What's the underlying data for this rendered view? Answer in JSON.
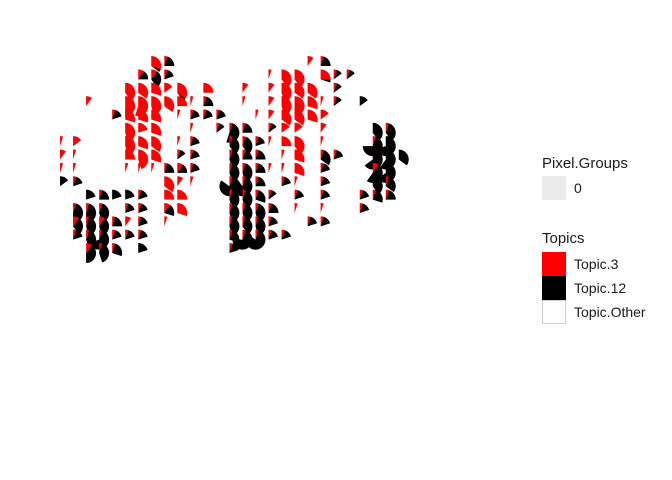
{
  "chart_data": {
    "type": "scatter-pie",
    "title": "",
    "xlabel": "",
    "ylabel": "",
    "grid": false,
    "axes_visible": false,
    "x_range": [
      1,
      35
    ],
    "y_range": [
      1,
      26
    ],
    "colors": {
      "Topic.3": "#ff0000",
      "Topic.12": "#000000",
      "Topic.Other": "#ffffff"
    },
    "legend": {
      "placement": "right",
      "pixel_groups": {
        "title": "Pixel.Groups",
        "entries": [
          "0"
        ],
        "fill": "#ebebeb"
      },
      "topics": {
        "title": "Topics",
        "entries": [
          "Topic.3",
          "Topic.12",
          "Topic.Other"
        ]
      }
    },
    "fields": [
      "x",
      "y",
      "topic3_share",
      "topic12_share"
    ],
    "points": [
      [
        9,
        1,
        0.3,
        0.05
      ],
      [
        10,
        1,
        0.05,
        0.2
      ],
      [
        8,
        2,
        0.1,
        0.15
      ],
      [
        9,
        2,
        0.1,
        0.3
      ],
      [
        10,
        2,
        0.05,
        0.15
      ],
      [
        7,
        3,
        0.4,
        0.0
      ],
      [
        8,
        3,
        0.35,
        0.0
      ],
      [
        9,
        3,
        0.3,
        0.0
      ],
      [
        10,
        3,
        0.15,
        0.0
      ],
      [
        11,
        3,
        0.35,
        0.05
      ],
      [
        13,
        3,
        0.25,
        0.0
      ],
      [
        4,
        4,
        0.1,
        0.0
      ],
      [
        7,
        4,
        0.5,
        0.0
      ],
      [
        8,
        4,
        0.55,
        0.0
      ],
      [
        9,
        4,
        0.45,
        0.0
      ],
      [
        10,
        4,
        0.35,
        0.0
      ],
      [
        11,
        4,
        0.25,
        0.0
      ],
      [
        12,
        4,
        0.05,
        0.0
      ],
      [
        13,
        4,
        0.05,
        0.2
      ],
      [
        6,
        5,
        0.05,
        0.15
      ],
      [
        7,
        5,
        0.3,
        0.0
      ],
      [
        8,
        5,
        0.3,
        0.0
      ],
      [
        9,
        5,
        0.3,
        0.0
      ],
      [
        11,
        5,
        0.05,
        0.0
      ],
      [
        12,
        5,
        0.05,
        0.15
      ],
      [
        13,
        5,
        0.1,
        0.0
      ],
      [
        7,
        6,
        0.45,
        0.0
      ],
      [
        8,
        6,
        0.2,
        0.0
      ],
      [
        9,
        6,
        0.3,
        0.0
      ],
      [
        12,
        6,
        0.05,
        0.0
      ],
      [
        14,
        6,
        0.05,
        0.1
      ],
      [
        2,
        7,
        0.05,
        0.0
      ],
      [
        3,
        7,
        0.15,
        0.0
      ],
      [
        7,
        7,
        0.45,
        0.0
      ],
      [
        8,
        7,
        0.3,
        0.0
      ],
      [
        9,
        7,
        0.35,
        0.0
      ],
      [
        11,
        7,
        0.05,
        0.0
      ],
      [
        12,
        7,
        0.05,
        0.15
      ],
      [
        2,
        8,
        0.1,
        0.0
      ],
      [
        3,
        8,
        0.05,
        0.0
      ],
      [
        7,
        8,
        0.25,
        0.0
      ],
      [
        8,
        8,
        0.45,
        0.0
      ],
      [
        9,
        8,
        0.3,
        0.0
      ],
      [
        11,
        8,
        0.05,
        0.1
      ],
      [
        12,
        8,
        0.05,
        0.15
      ],
      [
        2,
        9,
        0.05,
        0.0
      ],
      [
        3,
        9,
        0.05,
        0.0
      ],
      [
        7,
        9,
        0.05,
        0.0
      ],
      [
        8,
        9,
        0.05,
        0.0
      ],
      [
        9,
        9,
        0.05,
        0.0
      ],
      [
        10,
        9,
        0.05,
        0.2
      ],
      [
        11,
        9,
        0.1,
        0.15
      ],
      [
        12,
        9,
        0.05,
        0.15
      ],
      [
        3,
        10,
        0.05,
        0.15
      ],
      [
        2,
        10,
        0.0,
        0.15
      ],
      [
        10,
        10,
        0.35,
        0.0
      ],
      [
        11,
        10,
        0.1,
        0.0
      ],
      [
        12,
        10,
        0.05,
        0.0
      ],
      [
        4,
        11,
        0.0,
        0.2
      ],
      [
        5,
        11,
        0.05,
        0.2
      ],
      [
        6,
        11,
        0.0,
        0.2
      ],
      [
        7,
        11,
        0.0,
        0.2
      ],
      [
        8,
        11,
        0.05,
        0.15
      ],
      [
        10,
        11,
        0.25,
        0.0
      ],
      [
        11,
        11,
        0.25,
        0.0
      ],
      [
        3,
        12,
        0.05,
        0.45
      ],
      [
        4,
        12,
        0.05,
        0.45
      ],
      [
        5,
        12,
        0.05,
        0.4
      ],
      [
        7,
        12,
        0.05,
        0.15
      ],
      [
        8,
        12,
        0.05,
        0.15
      ],
      [
        10,
        12,
        0.1,
        0.2
      ],
      [
        11,
        12,
        0.3,
        0.0
      ],
      [
        3,
        13,
        0.1,
        0.3
      ],
      [
        4,
        13,
        0.05,
        0.4
      ],
      [
        5,
        13,
        0.1,
        0.35
      ],
      [
        6,
        13,
        0.05,
        0.2
      ],
      [
        7,
        13,
        0.1,
        0.0
      ],
      [
        8,
        13,
        0.05,
        0.15
      ],
      [
        10,
        13,
        0.05,
        0.0
      ],
      [
        3,
        14,
        0.05,
        0.15
      ],
      [
        4,
        14,
        0.05,
        0.4
      ],
      [
        5,
        14,
        0.05,
        0.65
      ],
      [
        6,
        14,
        0.05,
        0.15
      ],
      [
        7,
        14,
        0.05,
        0.15
      ],
      [
        8,
        14,
        0.05,
        0.15
      ],
      [
        4,
        15,
        0.1,
        0.4
      ],
      [
        5,
        15,
        0.05,
        0.4
      ],
      [
        6,
        15,
        0.05,
        0.25
      ],
      [
        8,
        15,
        0.0,
        0.2
      ],
      [
        13,
        5,
        0.05,
        0.15
      ],
      [
        14,
        5,
        0.05,
        0.15
      ],
      [
        15,
        6,
        0.05,
        0.5
      ],
      [
        16,
        6,
        0.05,
        0.2
      ],
      [
        15,
        7,
        0.05,
        0.35
      ],
      [
        16,
        7,
        0.05,
        0.35
      ],
      [
        17,
        7,
        0.05,
        0.15
      ],
      [
        15,
        8,
        0.05,
        0.4
      ],
      [
        16,
        8,
        0.05,
        0.2
      ],
      [
        17,
        8,
        0.05,
        0.2
      ],
      [
        15,
        9,
        0.05,
        0.4
      ],
      [
        16,
        9,
        0.05,
        0.4
      ],
      [
        17,
        9,
        0.05,
        0.2
      ],
      [
        15,
        10,
        0.05,
        0.8
      ],
      [
        16,
        10,
        0.05,
        0.85
      ],
      [
        17,
        10,
        0.05,
        0.2
      ],
      [
        15,
        11,
        0.05,
        0.4
      ],
      [
        16,
        11,
        0.05,
        0.4
      ],
      [
        17,
        11,
        0.05,
        0.25
      ],
      [
        15,
        12,
        0.05,
        0.4
      ],
      [
        16,
        12,
        0.05,
        0.4
      ],
      [
        17,
        12,
        0.05,
        0.4
      ],
      [
        18,
        12,
        0.05,
        0.2
      ],
      [
        15,
        13,
        0.05,
        0.4
      ],
      [
        16,
        13,
        0.05,
        0.35
      ],
      [
        17,
        13,
        0.05,
        0.4
      ],
      [
        18,
        13,
        0.05,
        0.15
      ],
      [
        15,
        14,
        0.05,
        0.25
      ],
      [
        16,
        14,
        0.05,
        0.7
      ],
      [
        17,
        14,
        0.05,
        0.8
      ],
      [
        18,
        14,
        0.05,
        0.15
      ],
      [
        19,
        14,
        0.05,
        0.15
      ],
      [
        15,
        15,
        0.05,
        0.15
      ],
      [
        21,
        1,
        0.1,
        0.0
      ],
      [
        22,
        1,
        0.05,
        0.2
      ],
      [
        18,
        2,
        0.05,
        0.0
      ],
      [
        19,
        2,
        0.4,
        0.0
      ],
      [
        20,
        2,
        0.4,
        0.0
      ],
      [
        22,
        2,
        0.25,
        0.05
      ],
      [
        23,
        2,
        0.05,
        0.1
      ],
      [
        24,
        2,
        0.05,
        0.1
      ],
      [
        16,
        3,
        0.1,
        0.0
      ],
      [
        18,
        3,
        0.1,
        0.0
      ],
      [
        19,
        3,
        0.45,
        0.0
      ],
      [
        20,
        3,
        0.35,
        0.0
      ],
      [
        21,
        3,
        0.35,
        0.0
      ],
      [
        23,
        3,
        0.05,
        0.1
      ],
      [
        16,
        4,
        0.05,
        0.0
      ],
      [
        18,
        4,
        0.1,
        0.0
      ],
      [
        19,
        4,
        0.45,
        0.0
      ],
      [
        20,
        4,
        0.5,
        0.0
      ],
      [
        21,
        4,
        0.3,
        0.0
      ],
      [
        22,
        4,
        0.05,
        0.0
      ],
      [
        23,
        4,
        0.05,
        0.1
      ],
      [
        25,
        4,
        0.0,
        0.15
      ],
      [
        17,
        5,
        0.05,
        0.0
      ],
      [
        18,
        5,
        0.1,
        0.0
      ],
      [
        19,
        5,
        0.35,
        0.0
      ],
      [
        20,
        5,
        0.35,
        0.0
      ],
      [
        21,
        5,
        0.3,
        0.0
      ],
      [
        22,
        5,
        0.15,
        0.0
      ],
      [
        18,
        6,
        0.05,
        0.1
      ],
      [
        19,
        6,
        0.15,
        0.0
      ],
      [
        20,
        6,
        0.15,
        0.0
      ],
      [
        22,
        6,
        0.1,
        0.0
      ],
      [
        18,
        7,
        0.05,
        0.0
      ],
      [
        19,
        7,
        0.25,
        0.0
      ],
      [
        20,
        7,
        0.4,
        0.0
      ],
      [
        22,
        7,
        0.05,
        0.0
      ],
      [
        19,
        8,
        0.05,
        0.0
      ],
      [
        20,
        8,
        0.3,
        0.0
      ],
      [
        22,
        8,
        0.05,
        0.3
      ],
      [
        23,
        8,
        0.05,
        0.15
      ],
      [
        18,
        9,
        0.05,
        0.0
      ],
      [
        19,
        9,
        0.05,
        0.0
      ],
      [
        20,
        9,
        0.3,
        0.0
      ],
      [
        22,
        9,
        0.05,
        0.15
      ],
      [
        19,
        10,
        0.05,
        0.15
      ],
      [
        20,
        10,
        0.05,
        0.0
      ],
      [
        22,
        10,
        0.05,
        0.15
      ],
      [
        18,
        11,
        0.05,
        0.1
      ],
      [
        20,
        11,
        0.05,
        0.15
      ],
      [
        22,
        11,
        0.05,
        0.15
      ],
      [
        20,
        12,
        0.05,
        0.0
      ],
      [
        22,
        12,
        0.05,
        0.0
      ],
      [
        21,
        13,
        0.05,
        0.15
      ],
      [
        22,
        13,
        0.05,
        0.15
      ],
      [
        26,
        6,
        0.0,
        0.4
      ],
      [
        27,
        6,
        0.05,
        0.35
      ],
      [
        26,
        7,
        0.05,
        0.7
      ],
      [
        27,
        7,
        0.0,
        0.7
      ],
      [
        26,
        8,
        0.0,
        0.65
      ],
      [
        27,
        8,
        0.0,
        0.6
      ],
      [
        28,
        8,
        0.0,
        0.35
      ],
      [
        26,
        9,
        0.1,
        0.5
      ],
      [
        27,
        9,
        0.0,
        0.65
      ],
      [
        26,
        10,
        0.0,
        0.4
      ],
      [
        27,
        10,
        0.05,
        0.3
      ],
      [
        25,
        11,
        0.05,
        0.15
      ],
      [
        26,
        11,
        0.05,
        0.25
      ],
      [
        27,
        11,
        0.05,
        0.2
      ],
      [
        25,
        12,
        0.05,
        0.15
      ]
    ]
  }
}
